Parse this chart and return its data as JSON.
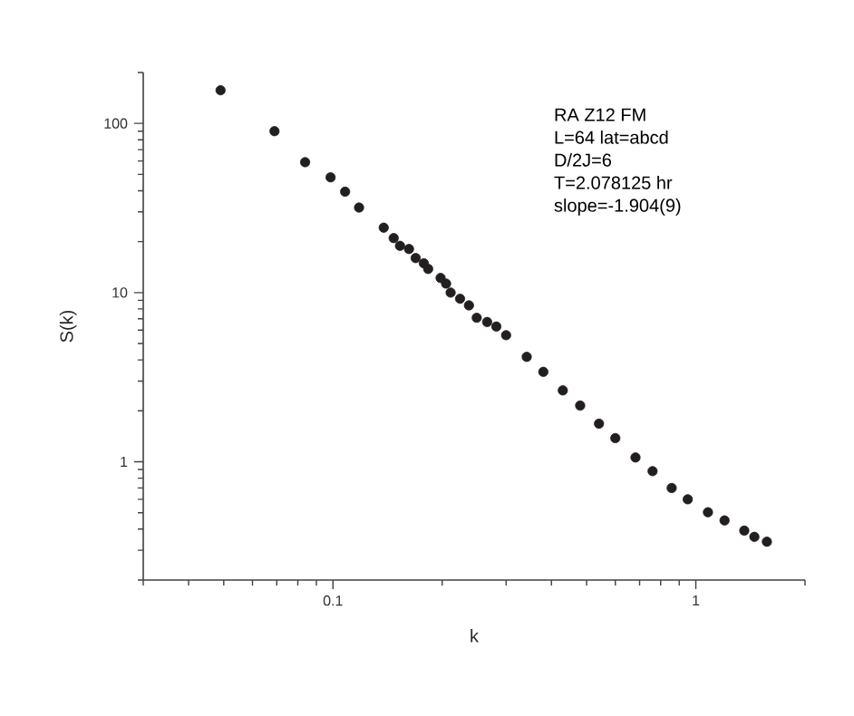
{
  "chart_data": {
    "type": "scatter",
    "xlabel": "k",
    "ylabel": "S(k)",
    "log": "xy",
    "marker": "circle",
    "grid": false,
    "legend": false,
    "annotations": [
      "RA Z12 FM",
      "L=64 lat=abcd",
      "D/2J=6",
      "T=2.078125 hr",
      "slope=-1.904(9)"
    ],
    "xlim": [
      0.03,
      2
    ],
    "ylim": [
      0.2,
      200
    ],
    "xticks": [
      0.1,
      1
    ],
    "yticks": [
      1,
      10,
      100
    ],
    "series": [
      {
        "color": "#231f20",
        "x": [
          0.049,
          0.069,
          0.0838,
          0.0985,
          0.108,
          0.118,
          0.138,
          0.147,
          0.153,
          0.162,
          0.169,
          0.178,
          0.183,
          0.198,
          0.205,
          0.211,
          0.224,
          0.237,
          0.249,
          0.266,
          0.282,
          0.3,
          0.342,
          0.38,
          0.43,
          0.48,
          0.541,
          0.6,
          0.682,
          0.76,
          0.858,
          0.95,
          1.08,
          1.2,
          1.36,
          1.45,
          1.57
        ],
        "values": [
          157,
          90,
          59,
          48,
          39.5,
          31.8,
          24.2,
          21,
          18.9,
          18.1,
          16,
          14.9,
          13.8,
          12.2,
          11.3,
          10,
          9.2,
          8.4,
          7.1,
          6.7,
          6.3,
          5.6,
          4.17,
          3.4,
          2.64,
          2.15,
          1.68,
          1.38,
          1.06,
          0.88,
          0.7,
          0.6,
          0.503,
          0.45,
          0.392,
          0.36,
          0.337
        ]
      }
    ]
  }
}
